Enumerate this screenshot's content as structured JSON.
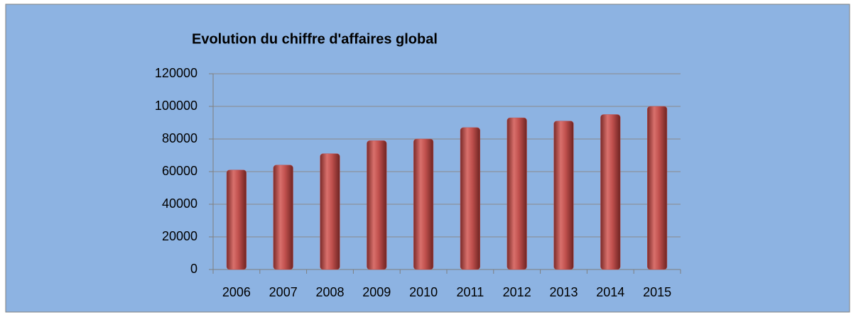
{
  "chart_data": {
    "type": "bar",
    "title": "Evolution du chiffre d'affaires global",
    "categories": [
      "2006",
      "2007",
      "2008",
      "2009",
      "2010",
      "2011",
      "2012",
      "2013",
      "2014",
      "2015"
    ],
    "values": [
      61000,
      64000,
      71000,
      79000,
      80000,
      87000,
      93000,
      91000,
      95000,
      100000
    ],
    "color": "#c0504d",
    "ylim": [
      0,
      120000
    ],
    "yticks": [
      0,
      20000,
      40000,
      60000,
      80000,
      100000,
      120000
    ],
    "grid": true
  }
}
